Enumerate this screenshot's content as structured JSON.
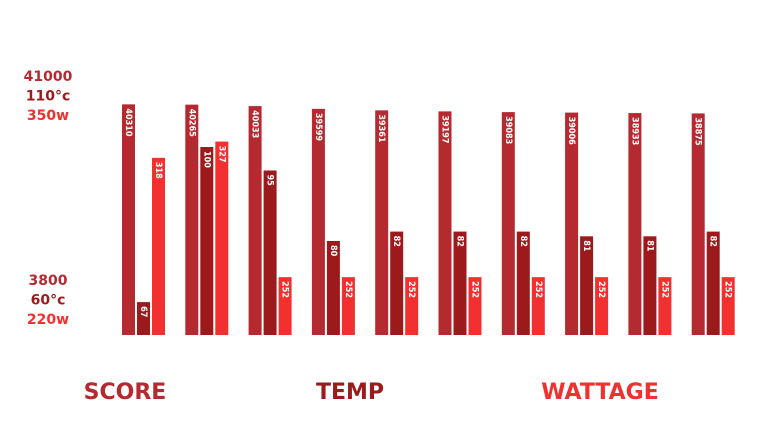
{
  "chart_data": {
    "type": "bar",
    "series": [
      {
        "name": "SCORE",
        "color": "#b52a30",
        "values": [
          40310,
          40265,
          40033,
          39599,
          39361,
          39197,
          39083,
          39006,
          38933,
          38875
        ],
        "ylim": [
          3800,
          41000
        ],
        "yticks": [
          3800,
          41000
        ]
      },
      {
        "name": "TEMP",
        "color": "#9c1a1c",
        "values": [
          67,
          100,
          95,
          80,
          82,
          82,
          82,
          81,
          81,
          82
        ],
        "ylim": [
          60,
          110
        ],
        "yticks": [
          {
            "value": 60,
            "label": "60°c"
          },
          {
            "value": 110,
            "label": "110°c"
          }
        ]
      },
      {
        "name": "WATTAGE",
        "color": "#f2302f",
        "values": [
          318,
          327,
          252,
          252,
          252,
          252,
          252,
          252,
          252,
          252
        ],
        "ylim": [
          220,
          350
        ],
        "yticks": [
          {
            "value": 220,
            "label": "220w"
          },
          {
            "value": 350,
            "label": "350w"
          }
        ]
      }
    ]
  }
}
